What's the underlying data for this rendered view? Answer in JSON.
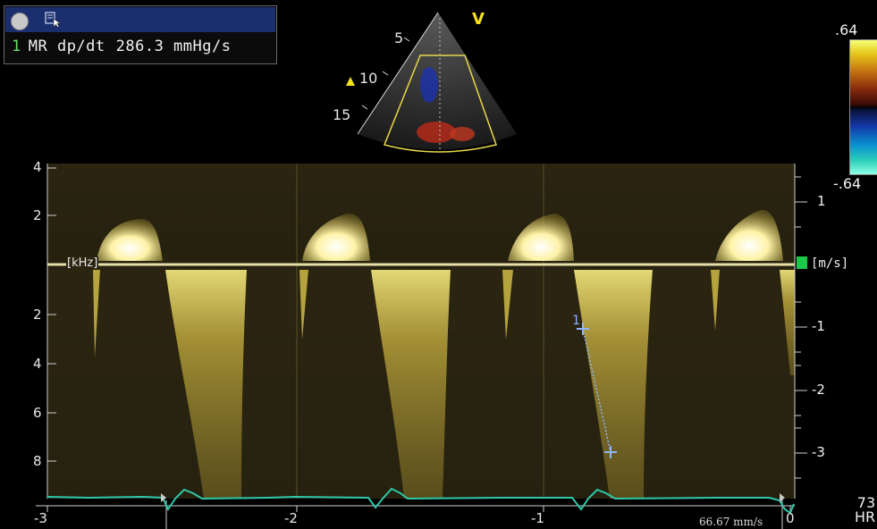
{
  "measurement_box": {
    "index": "1",
    "label": "MR dp/dt",
    "value": "286.3 mmHg/s"
  },
  "sector": {
    "depth_labels": [
      "5",
      "10",
      "15"
    ],
    "orientation_marker": "V"
  },
  "color_scale": {
    "max": ".64",
    "min": "-.64"
  },
  "doppler": {
    "left_axis_unit": "[kHz]",
    "left_ticks_above": [
      "4",
      "2"
    ],
    "left_ticks_below": [
      "2",
      "4",
      "6",
      "8"
    ],
    "right_axis_unit": "[m/s]",
    "right_ticks": [
      "1",
      "-1",
      "-2",
      "-3"
    ],
    "time_ticks": [
      "-3",
      "-2",
      "-1",
      "0"
    ],
    "sweep_speed": "66.67 mm/s",
    "caliper_label": "1"
  },
  "heart_rate": {
    "value": "73",
    "unit": "HR"
  },
  "icons": {
    "record": "record-circle-icon",
    "cursor": "cursor-select-icon",
    "marker": "triangle-marker-icon"
  },
  "colors": {
    "doppler_signal": "#e8d23a",
    "ecg_trace": "#2ec8a8",
    "caliper": "#8fb3ff",
    "toolbar": "#1b2e6d"
  }
}
